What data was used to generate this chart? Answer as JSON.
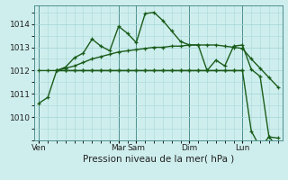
{
  "background_color": "#ceeeed",
  "plot_bg_color": "#ceeeed",
  "grid_color": "#a8d8d8",
  "line_color": "#1a5c1a",
  "ylim": [
    1009.0,
    1014.8
  ],
  "yticks": [
    1010,
    1011,
    1012,
    1013,
    1014
  ],
  "xlabel": "Pression niveau de la mer( hPa )",
  "day_labels": [
    "Ven",
    "Mar",
    "Sam",
    "Dim",
    "Lun"
  ],
  "day_positions": [
    0,
    9,
    11,
    17,
    23
  ],
  "series1_x": [
    0,
    1,
    2,
    3,
    4,
    5,
    6,
    7,
    8,
    9,
    10,
    11,
    12,
    13,
    14,
    15,
    16,
    17,
    18,
    19,
    20,
    21,
    22,
    23,
    24,
    25,
    26,
    27
  ],
  "series1_y": [
    1010.6,
    1010.85,
    1012.0,
    1012.15,
    1012.55,
    1012.75,
    1013.35,
    1013.05,
    1012.85,
    1013.9,
    1013.6,
    1013.2,
    1014.45,
    1014.5,
    1014.15,
    1013.7,
    1013.25,
    1013.1,
    1013.1,
    1012.0,
    1012.45,
    1012.2,
    1013.05,
    1013.1,
    1012.05,
    1011.75,
    1009.15,
    1009.1
  ],
  "series2_x": [
    0,
    1,
    2,
    3,
    4,
    5,
    6,
    7,
    8,
    9,
    10,
    11,
    12,
    13,
    14,
    15,
    16,
    17,
    18,
    19,
    20,
    21,
    22,
    23,
    24,
    25,
    26,
    27
  ],
  "series2_y": [
    1012.0,
    1012.0,
    1012.0,
    1012.0,
    1012.0,
    1012.0,
    1012.0,
    1012.0,
    1012.0,
    1012.0,
    1012.0,
    1012.0,
    1012.0,
    1012.0,
    1012.0,
    1012.0,
    1012.0,
    1012.0,
    1012.0,
    1012.0,
    1012.0,
    1012.0,
    1012.0,
    1012.0,
    1009.4,
    1008.7,
    1009.15,
    1008.7
  ],
  "series3_x": [
    2,
    3,
    4,
    5,
    6,
    7,
    8,
    9,
    10,
    11,
    12,
    13,
    14,
    15,
    16,
    17,
    18,
    19,
    20,
    21,
    22,
    23,
    24,
    25,
    26,
    27
  ],
  "series3_y": [
    1012.0,
    1012.1,
    1012.2,
    1012.35,
    1012.5,
    1012.6,
    1012.7,
    1012.8,
    1012.85,
    1012.9,
    1012.95,
    1013.0,
    1013.0,
    1013.05,
    1013.05,
    1013.1,
    1013.1,
    1013.1,
    1013.1,
    1013.05,
    1013.0,
    1012.95,
    1012.5,
    1012.1,
    1011.7,
    1011.3
  ],
  "series4_x": [
    2,
    3,
    4,
    5,
    6,
    7,
    8,
    9,
    10,
    11,
    12,
    13,
    14,
    15,
    16,
    17,
    18,
    19,
    20,
    21,
    22,
    23
  ],
  "series4_y": [
    1012.0,
    1012.0,
    1012.0,
    1012.0,
    1012.0,
    1012.0,
    1012.0,
    1012.0,
    1012.0,
    1012.0,
    1012.0,
    1012.0,
    1012.0,
    1012.0,
    1012.0,
    1012.0,
    1012.0,
    1012.0,
    1012.0,
    1012.0,
    1012.0,
    1012.0
  ],
  "xlim": [
    -0.5,
    27.5
  ],
  "figsize": [
    3.2,
    2.0
  ],
  "dpi": 100
}
